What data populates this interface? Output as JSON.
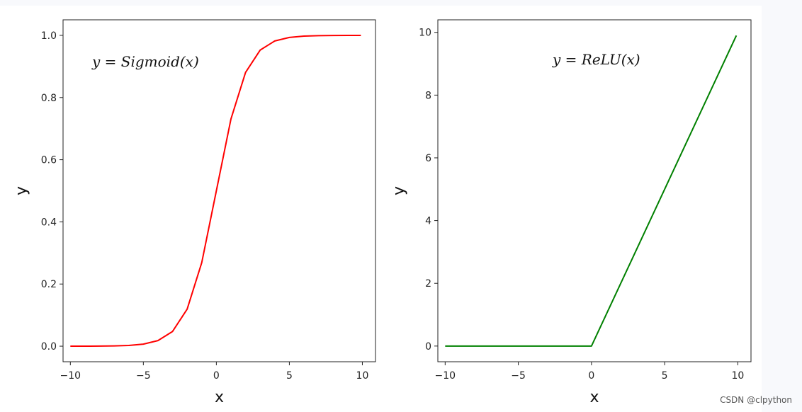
{
  "chart_data": [
    {
      "type": "line",
      "annotation": "y = Sigmoid(x)",
      "xlabel": "x",
      "ylabel": "y",
      "xlim": [
        -10.5,
        10.9
      ],
      "ylim": [
        -0.05,
        1.05
      ],
      "xticks": [
        -10,
        -5,
        0,
        5,
        10
      ],
      "xtick_labels": [
        "−10",
        "−5",
        "0",
        "5",
        "10"
      ],
      "yticks": [
        0.0,
        0.2,
        0.4,
        0.6,
        0.8,
        1.0
      ],
      "ytick_labels": [
        "0.0",
        "0.2",
        "0.4",
        "0.6",
        "0.8",
        "1.0"
      ],
      "grid": false,
      "series": [
        {
          "color": "#ff0000",
          "x": [
            -10,
            -9,
            -8,
            -7,
            -6,
            -5,
            -4,
            -3,
            -2,
            -1,
            0,
            1,
            2,
            3,
            4,
            5,
            6,
            7,
            8,
            9,
            9.9
          ],
          "y": [
            0.0,
            0.0001,
            0.0003,
            0.0009,
            0.0025,
            0.0067,
            0.018,
            0.0474,
            0.1192,
            0.2689,
            0.5,
            0.7311,
            0.8808,
            0.9526,
            0.982,
            0.9933,
            0.9975,
            0.9991,
            0.9997,
            0.9999,
            1.0
          ]
        }
      ]
    },
    {
      "type": "line",
      "annotation": "y = ReLU(x)",
      "xlabel": "x",
      "ylabel": "y",
      "xlim": [
        -10.5,
        10.9
      ],
      "ylim": [
        -0.5,
        10.4
      ],
      "xticks": [
        -10,
        -5,
        0,
        5,
        10
      ],
      "xtick_labels": [
        "−10",
        "−5",
        "0",
        "5",
        "10"
      ],
      "yticks": [
        0,
        2,
        4,
        6,
        8,
        10
      ],
      "ytick_labels": [
        "0",
        "2",
        "4",
        "6",
        "8",
        "10"
      ],
      "grid": false,
      "series": [
        {
          "color": "#008000",
          "x": [
            -10,
            0,
            9.9
          ],
          "y": [
            0,
            0,
            9.9
          ]
        }
      ]
    }
  ],
  "watermark": "CSDN @clpython"
}
